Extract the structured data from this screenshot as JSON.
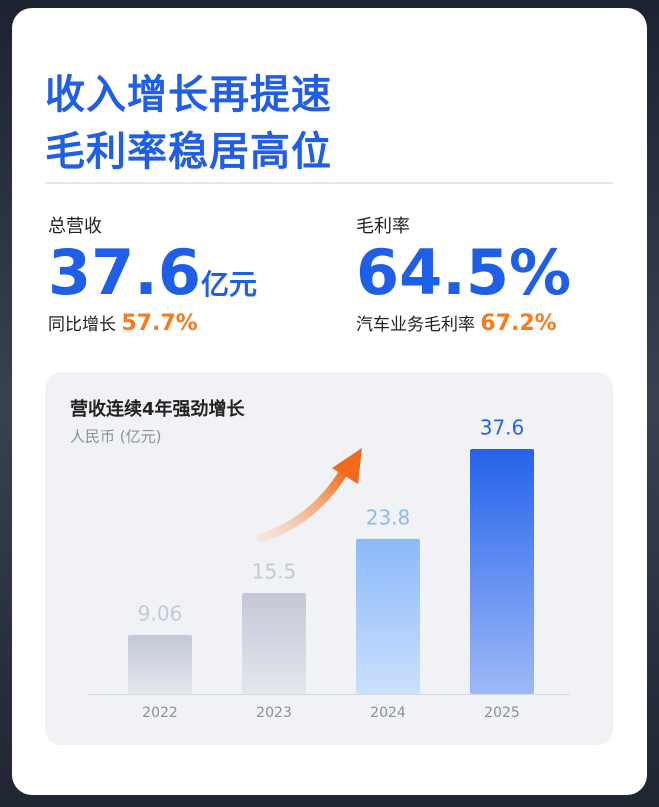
{
  "header": {
    "title_lines": [
      "收入增长再提速",
      "毛利率稳居高位"
    ]
  },
  "metrics": [
    {
      "label": "总营收",
      "value": "37.6",
      "unit": "亿元",
      "sub_label": "同比增长",
      "sub_value": "57.7%"
    },
    {
      "label": "毛利率",
      "value": "64.5%",
      "sub_label": "汽车业务毛利率",
      "sub_value": "67.2%"
    }
  ],
  "chart_data": {
    "type": "bar",
    "title": "营收连续4年强劲增长",
    "subtitle": "人民币 (亿元)",
    "categories": [
      "2022",
      "2023",
      "2024",
      "2025"
    ],
    "values": [
      9.06,
      15.5,
      23.8,
      37.6
    ],
    "colors": [
      "#c3c8d6",
      "#c3c8d6",
      "#8cbaf9",
      "#2563eb"
    ]
  }
}
